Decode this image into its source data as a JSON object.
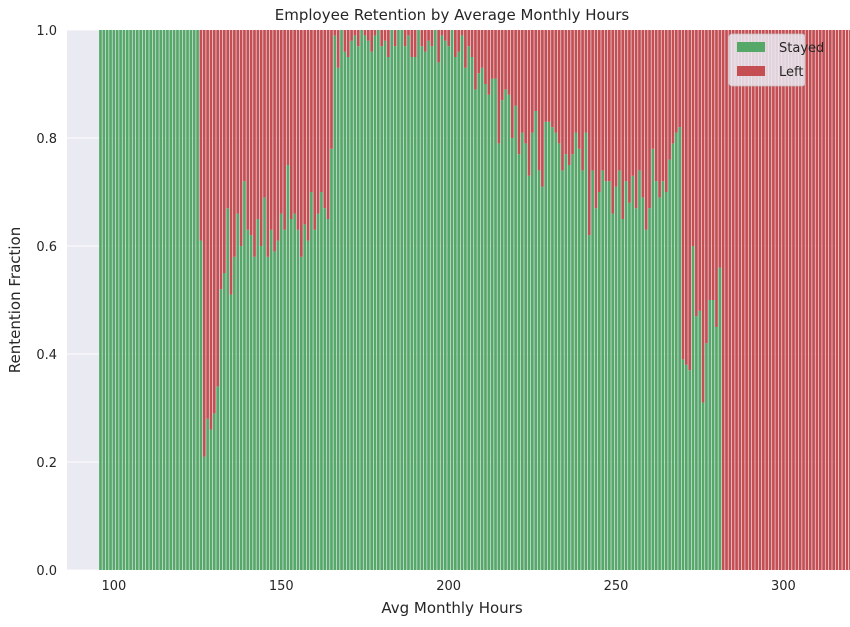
{
  "chart_data": {
    "type": "bar",
    "stacked": true,
    "title": "Employee Retention by Average Monthly Hours",
    "xlabel": "Avg Monthly Hours",
    "ylabel": "Rentention Fraction",
    "xlim": [
      86,
      316
    ],
    "ylim": [
      0,
      1
    ],
    "x_ticks": [
      100,
      150,
      200,
      250,
      300
    ],
    "y_ticks": [
      0.0,
      0.2,
      0.4,
      0.6,
      0.8,
      1.0
    ],
    "y_tick_labels": [
      "0.0",
      "0.2",
      "0.4",
      "0.6",
      "0.8",
      "1.0"
    ],
    "grid": true,
    "legend_position": "top-right",
    "colors": {
      "stayed": "#55a868",
      "left": "#c44e52",
      "background": "#eaeaf2",
      "grid": "#ffffff"
    },
    "x_start": 96,
    "series": [
      {
        "name": "Stayed",
        "values": [
          1,
          1,
          1,
          1,
          1,
          1,
          1,
          1,
          1,
          1,
          1,
          1,
          1,
          1,
          1,
          1,
          1,
          1,
          1,
          1,
          1,
          1,
          1,
          1,
          1,
          1,
          1,
          1,
          1,
          1,
          0.61,
          0.21,
          0.28,
          0.26,
          0.29,
          0.34,
          0.52,
          0.55,
          0.67,
          0.51,
          0.58,
          0.66,
          0.6,
          0.72,
          0.63,
          0.62,
          0.58,
          0.65,
          0.6,
          0.69,
          0.58,
          0.63,
          0.59,
          0.61,
          0.66,
          0.63,
          0.75,
          0.65,
          0.66,
          0.63,
          0.58,
          0.64,
          0.61,
          0.7,
          0.63,
          0.66,
          0.7,
          0.67,
          0.65,
          0.78,
          0.99,
          0.93,
          1,
          0.96,
          0.95,
          0.98,
          0.99,
          0.97,
          1,
          0.99,
          0.98,
          0.96,
          0.99,
          1,
          0.97,
          0.98,
          0.95,
          1,
          0.97,
          1,
          1,
          0.97,
          0.99,
          0.95,
          0.95,
          1,
          0.97,
          0.96,
          0.98,
          0.97,
          1,
          0.94,
          0.99,
          0.98,
          0.97,
          1,
          0.95,
          0.96,
          0.99,
          0.93,
          0.97,
          0.95,
          0.89,
          0.92,
          0.93,
          0.9,
          0.88,
          0.91,
          0.91,
          0.79,
          0.87,
          0.89,
          0.88,
          0.8,
          0.86,
          0.77,
          0.81,
          0.79,
          0.73,
          0.81,
          0.85,
          0.74,
          0.71,
          0.83,
          0.83,
          0.82,
          0.81,
          0.79,
          0.74,
          0.77,
          0.75,
          0.77,
          0.81,
          0.78,
          0.74,
          0.81,
          0.62,
          0.74,
          0.67,
          0.7,
          0.74,
          0.72,
          0.72,
          0.66,
          0.71,
          0.74,
          0.65,
          0.72,
          0.68,
          0.73,
          0.67,
          0.74,
          0.69,
          0.63,
          0.67,
          0.78,
          0.72,
          0.69,
          0.72,
          0.7,
          0.76,
          0.79,
          0.81,
          0.82,
          0.39,
          0.38,
          0.37,
          0.6,
          0.47,
          0.48,
          0.31,
          0.42,
          0.5,
          0.5,
          0.45,
          0.56,
          0,
          0,
          0,
          0,
          0,
          0,
          0,
          0,
          0,
          0,
          0,
          0,
          0,
          0,
          0,
          0,
          0,
          0,
          0,
          0,
          0,
          0,
          0,
          0,
          0,
          0,
          0,
          0,
          0,
          0,
          0,
          0,
          0,
          0,
          0,
          0,
          0,
          0,
          0
        ]
      },
      {
        "name": "Left"
      }
    ]
  }
}
